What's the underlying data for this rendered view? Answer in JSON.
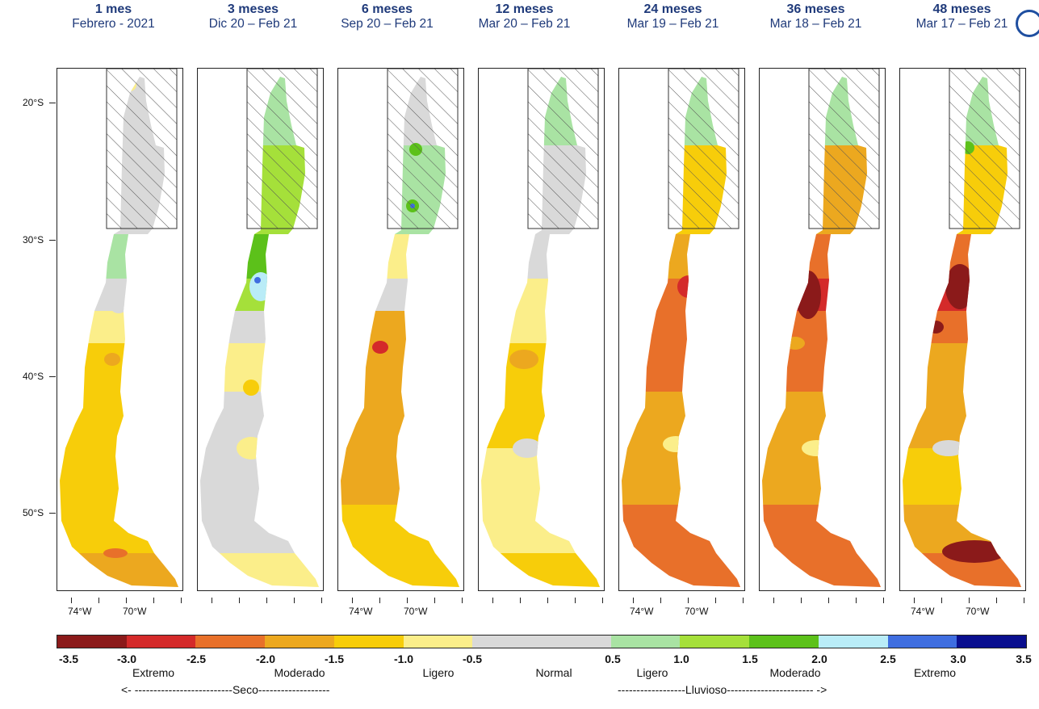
{
  "panels": [
    {
      "title": "1 mes",
      "subtitle": "Febrero - 2021",
      "show_lon_labels": true
    },
    {
      "title": "3 meses",
      "subtitle": "Dic 20 – Feb 21",
      "show_lon_labels": false
    },
    {
      "title": "6 meses",
      "subtitle": "Sep 20 – Feb 21",
      "show_lon_labels": true
    },
    {
      "title": "12 meses",
      "subtitle": "Mar 20 – Feb 21",
      "show_lon_labels": false
    },
    {
      "title": "24 meses",
      "subtitle": "Mar 19 – Feb 21",
      "show_lon_labels": true
    },
    {
      "title": "36 meses",
      "subtitle": "Mar 18 – Feb 21",
      "show_lon_labels": false
    },
    {
      "title": "48 meses",
      "subtitle": "Mar 17 – Feb 21",
      "show_lon_labels": true
    }
  ],
  "lat_labels": [
    "20°S",
    "30°S",
    "40°S",
    "50°S"
  ],
  "lon_labels": [
    "74°W",
    "70°W"
  ],
  "colorbar": {
    "colors": [
      "#8b1a1a",
      "#d42a2a",
      "#e8702a",
      "#eca81f",
      "#f7cd0a",
      "#fbee8a",
      "#d9d9d9",
      "#d9d9d9",
      "#a9e3a3",
      "#a5e03a",
      "#5cc11a",
      "#b9ecf7",
      "#3f6ee0",
      "#0a0f8f"
    ],
    "ticks": [
      "-3.5",
      "-3.0",
      "-2.5",
      "-2.0",
      "-1.5",
      "-1.0",
      "-0.5",
      "0.5",
      "1.0",
      "1.5",
      "2.0",
      "2.5",
      "3.0",
      "3.5"
    ],
    "classes": [
      "Extremo",
      "Moderado",
      "Ligero",
      "Normal",
      "Ligero",
      "Moderado",
      "Extremo"
    ],
    "seco_label": "<- --------------------------Seco-------------------",
    "lluvioso_label": "------------------Lluvioso----------------------- ->"
  }
}
